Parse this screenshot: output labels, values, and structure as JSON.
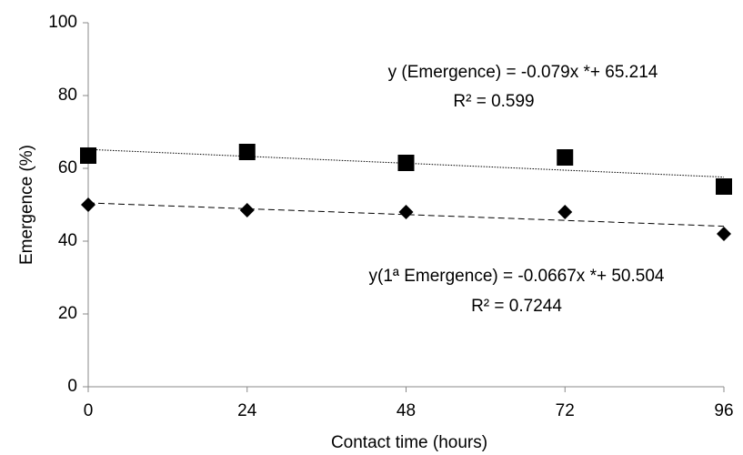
{
  "chart_data": {
    "type": "scatter",
    "x": [
      0,
      24,
      48,
      72,
      96
    ],
    "xlabel": "Contact time (hours)",
    "ylabel": "Emergence (%)",
    "xlim": [
      0,
      96
    ],
    "xticks": [
      0,
      24,
      48,
      72,
      96
    ],
    "ylim": [
      0,
      100
    ],
    "yticks": [
      0,
      20,
      40,
      60,
      80,
      100
    ],
    "grid": false,
    "series": [
      {
        "marker": "square",
        "color": "#000000",
        "values": [
          63.5,
          64.5,
          61.5,
          63,
          55
        ],
        "trendline": {
          "x": [
            0,
            96
          ],
          "values": [
            65.2,
            57.6
          ],
          "style": "dotted"
        }
      },
      {
        "marker": "diamond",
        "color": "#000000",
        "values": [
          50,
          48.5,
          48,
          48,
          42
        ],
        "trendline": {
          "x": [
            0,
            96
          ],
          "values": [
            50.5,
            44.1
          ],
          "style": "dashed"
        }
      }
    ],
    "annotations": [
      "y (Emergence) = -0.079x *+ 65.214",
      "R² = 0.599",
      "y(1ª Emergence) = -0.0667x *+ 50.504",
      "R² = 0.7244"
    ]
  }
}
